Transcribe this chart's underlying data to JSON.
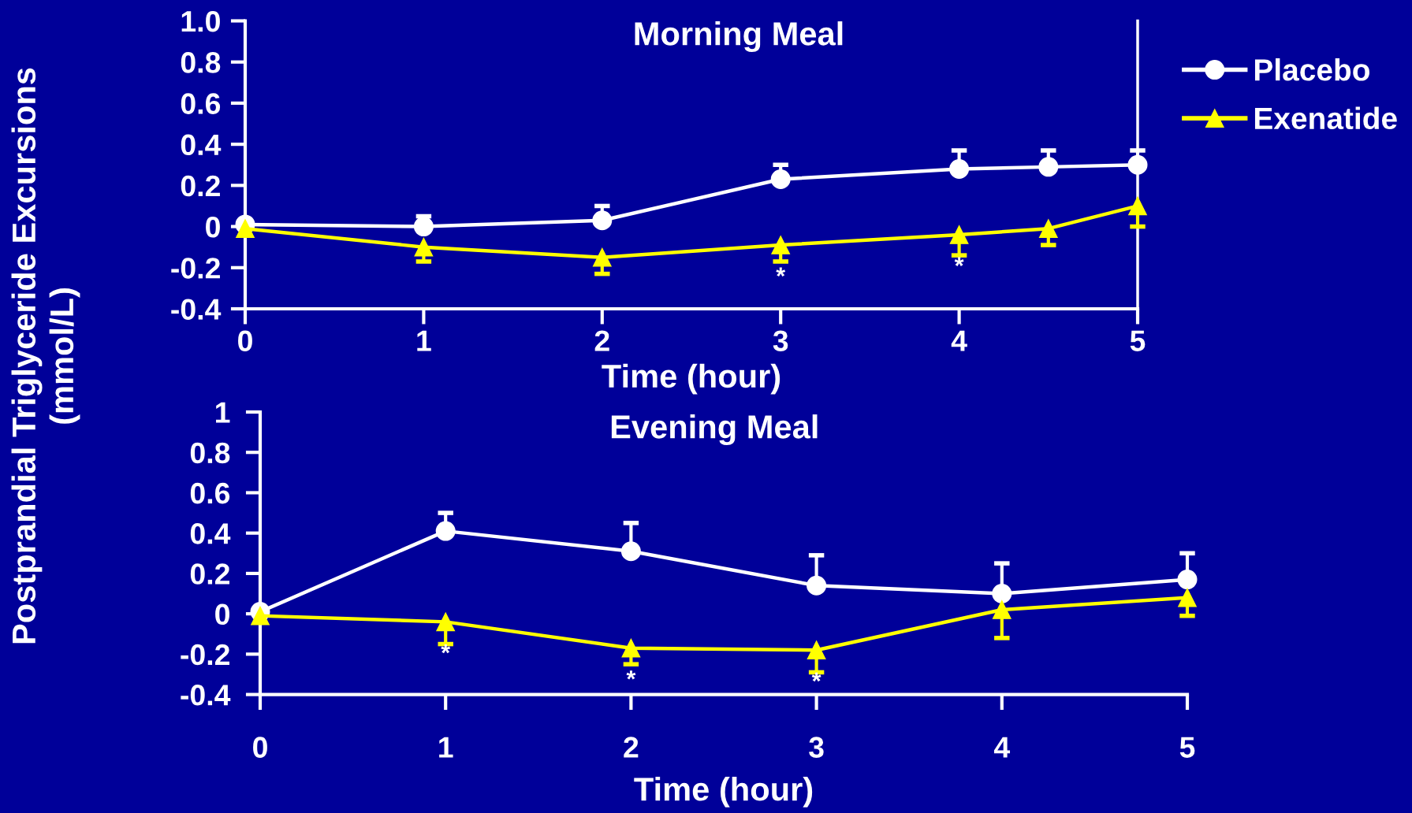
{
  "chart_data": [
    {
      "type": "line",
      "title": "Morning Meal",
      "xlabel": "Time (hour)",
      "ylabel": "Postprandial Triglyceride Excursions\n(mmol/L)",
      "x": [
        0,
        1,
        2,
        3,
        4,
        4.5,
        5
      ],
      "series": [
        {
          "name": "Placebo",
          "color": "#ffffff",
          "marker": "circle",
          "values": [
            0.01,
            0,
            0.03,
            0.23,
            0.28,
            0.29,
            0.3
          ],
          "errors": [
            null,
            [
              0,
              0.05
            ],
            [
              0.03,
              0.1
            ],
            [
              0.23,
              0.3
            ],
            [
              0.28,
              0.37
            ],
            [
              0.29,
              0.37
            ],
            [
              0.3,
              0.37
            ]
          ]
        },
        {
          "name": "Exenatide",
          "color": "#ffff00",
          "marker": "triangle",
          "values": [
            -0.01,
            -0.1,
            -0.15,
            -0.09,
            -0.04,
            -0.01,
            0.1
          ],
          "errors": [
            null,
            [
              -0.17,
              -0.1
            ],
            [
              -0.23,
              -0.15
            ],
            [
              -0.17,
              -0.09
            ],
            [
              -0.14,
              -0.04
            ],
            [
              -0.09,
              -0.01
            ],
            [
              0.0,
              0.1
            ]
          ]
        }
      ],
      "xlim": [
        0,
        5
      ],
      "xticks": [
        0,
        1,
        2,
        3,
        4,
        5
      ],
      "ylim": [
        -0.4,
        1.0
      ],
      "yticks": [
        -0.4,
        -0.2,
        0,
        0.2,
        0.4,
        0.6,
        0.8,
        {
          "value": 1.0,
          "label": "1.0"
        }
      ],
      "ref_lines": [
        {
          "axis": "x",
          "value": 5,
          "color": "#ffffff"
        }
      ],
      "annotations": [
        {
          "text": "*",
          "x": 3,
          "y": -0.09
        },
        {
          "text": "*",
          "x": 4,
          "y": -0.04
        }
      ],
      "legend": "top right"
    },
    {
      "type": "line",
      "title": "Evening Meal",
      "xlabel": "Time (hour)",
      "x": [
        0,
        1,
        2,
        3,
        4,
        5
      ],
      "series": [
        {
          "color": "#ffffff",
          "marker": "circle",
          "values": [
            0.01,
            0.41,
            0.31,
            0.14,
            0.1,
            0.17
          ],
          "errors": [
            null,
            [
              0.41,
              0.5
            ],
            [
              0.31,
              0.45
            ],
            [
              0.14,
              0.29
            ],
            [
              0.1,
              0.25
            ],
            [
              0.17,
              0.3
            ]
          ]
        },
        {
          "color": "#ffff00",
          "marker": "triangle",
          "values": [
            -0.01,
            -0.04,
            -0.17,
            -0.18,
            0.02,
            0.08
          ],
          "errors": [
            null,
            [
              -0.15,
              -0.04
            ],
            [
              -0.25,
              -0.17
            ],
            [
              -0.29,
              -0.18
            ],
            [
              -0.12,
              0.02
            ],
            [
              -0.01,
              0.08
            ]
          ]
        }
      ],
      "xlim": [
        0,
        5
      ],
      "xticks": [
        0,
        1,
        2,
        3,
        4,
        5
      ],
      "ylim": [
        -0.4,
        1
      ],
      "yticks": [
        -0.4,
        -0.2,
        0,
        0.2,
        0.4,
        0.6,
        0.8,
        1
      ],
      "annotations": [
        {
          "text": "*",
          "x": 1,
          "y": -0.04
        },
        {
          "text": "*",
          "x": 2,
          "y": -0.17
        },
        {
          "text": "*",
          "x": 3,
          "y": -0.18
        }
      ]
    }
  ]
}
